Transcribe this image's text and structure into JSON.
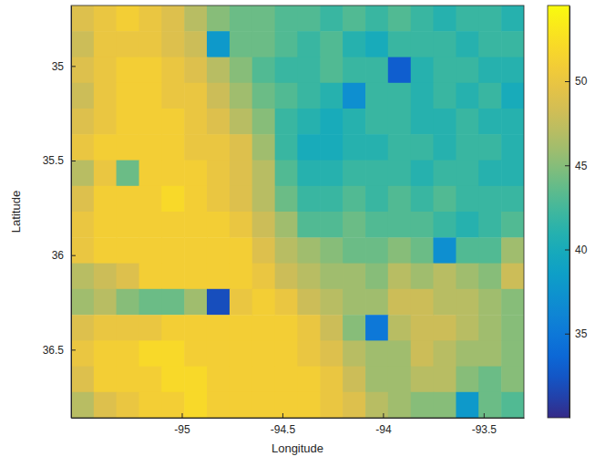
{
  "chart_data": {
    "type": "heatmap",
    "xlabel": "Longitude",
    "ylabel": "Latitude",
    "x": [
      -95.494,
      -95.381,
      -95.269,
      -95.156,
      -95.044,
      -94.931,
      -94.819,
      -94.706,
      -94.594,
      -94.481,
      -94.369,
      -94.256,
      -94.144,
      -94.031,
      -93.919,
      -93.806,
      -93.694,
      -93.581,
      -93.469,
      -93.356
    ],
    "y": [
      34.748,
      34.884,
      35.021,
      35.157,
      35.293,
      35.429,
      35.566,
      35.702,
      35.838,
      35.975,
      36.111,
      36.247,
      36.384,
      36.52,
      36.656,
      36.792
    ],
    "values": [
      [
        49,
        50,
        51,
        50,
        49,
        47,
        45,
        44,
        44,
        43,
        43,
        42,
        43,
        42,
        43,
        42,
        41,
        42,
        42,
        41
      ],
      [
        48,
        50,
        50,
        50,
        49,
        48,
        38,
        44,
        44,
        43,
        42,
        43,
        41,
        40,
        42,
        42,
        42,
        41,
        42,
        42
      ],
      [
        49,
        50,
        51,
        51,
        50,
        49,
        47,
        45,
        43,
        42,
        42,
        43,
        42,
        42,
        33,
        41,
        42,
        42,
        41,
        41
      ],
      [
        48,
        50,
        51,
        51,
        50,
        50,
        48,
        46,
        44,
        43,
        42,
        41,
        37,
        42,
        42,
        41,
        42,
        41,
        42,
        40
      ],
      [
        49,
        50,
        51,
        51,
        51,
        50,
        49,
        47,
        45,
        42,
        41,
        40,
        41,
        42,
        42,
        41,
        41,
        42,
        41,
        41
      ],
      [
        50,
        51,
        51,
        51,
        51,
        50,
        50,
        49,
        46,
        42,
        40,
        40,
        41,
        41,
        42,
        42,
        41,
        42,
        42,
        41
      ],
      [
        47,
        50,
        44,
        51,
        51,
        51,
        50,
        49,
        47,
        43,
        41,
        41,
        42,
        42,
        42,
        41,
        42,
        42,
        41,
        41
      ],
      [
        49,
        51,
        51,
        51,
        52,
        51,
        50,
        49,
        47,
        44,
        42,
        42,
        43,
        42,
        43,
        42,
        43,
        42,
        42,
        42
      ],
      [
        50,
        51,
        51,
        51,
        51,
        51,
        51,
        50,
        48,
        46,
        43,
        43,
        44,
        43,
        43,
        43,
        42,
        41,
        42,
        43
      ],
      [
        50,
        51,
        51,
        51,
        51,
        51,
        51,
        51,
        49,
        47,
        46,
        45,
        44,
        44,
        45,
        44,
        37,
        43,
        43,
        46
      ],
      [
        47,
        48,
        49,
        51,
        51,
        51,
        51,
        51,
        50,
        48,
        47,
        46,
        46,
        45,
        47,
        46,
        47,
        46,
        45,
        48
      ],
      [
        46,
        47,
        45,
        44,
        44,
        46,
        32,
        50,
        51,
        50,
        48,
        47,
        46,
        46,
        48,
        48,
        47,
        47,
        46,
        45
      ],
      [
        49,
        50,
        50,
        50,
        51,
        51,
        51,
        51,
        51,
        51,
        50,
        48,
        45,
        35,
        47,
        48,
        48,
        47,
        46,
        45
      ],
      [
        50,
        51,
        51,
        52,
        52,
        51,
        51,
        51,
        51,
        51,
        50,
        49,
        47,
        46,
        46,
        48,
        47,
        46,
        46,
        45
      ],
      [
        49,
        51,
        51,
        51,
        52,
        52,
        51,
        51,
        51,
        51,
        51,
        50,
        48,
        46,
        46,
        47,
        47,
        45,
        44,
        45
      ],
      [
        47,
        49,
        50,
        51,
        51,
        52,
        51,
        51,
        51,
        51,
        51,
        50,
        49,
        47,
        46,
        45,
        45,
        38,
        44,
        43
      ]
    ],
    "xlim": [
      -95.55,
      -93.3
    ],
    "xticks": [
      -95,
      -94.5,
      -94,
      -93.5
    ],
    "ylim": [
      34.68,
      36.86
    ],
    "yticks": [
      35,
      35.5,
      36,
      36.5
    ],
    "colorbar_range": [
      30,
      54.5
    ],
    "colorbar_ticks": [
      35,
      40,
      45,
      50
    ]
  }
}
